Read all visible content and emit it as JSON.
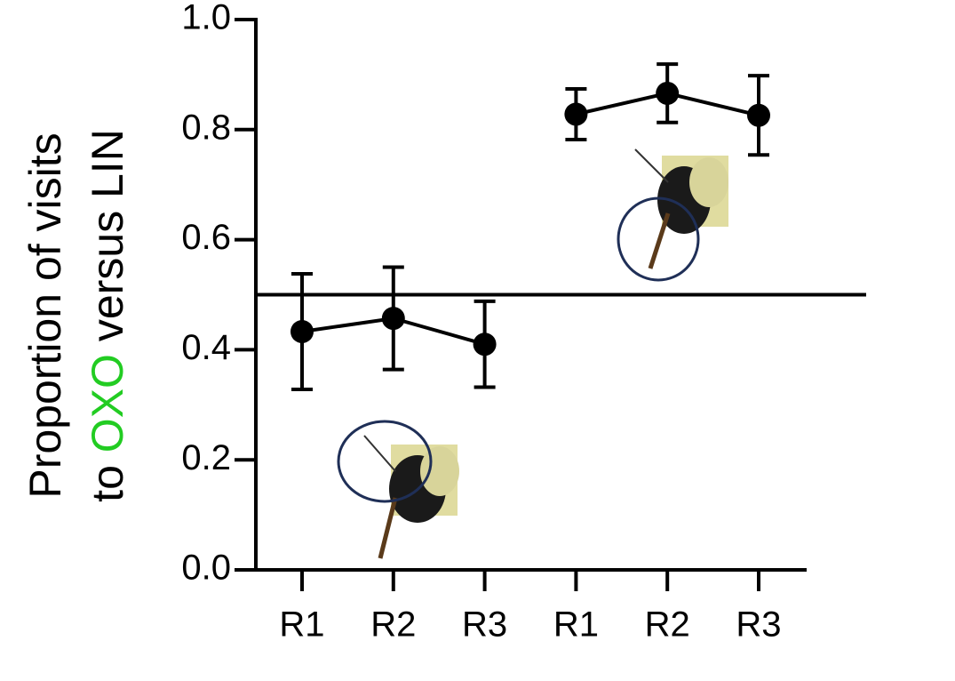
{
  "chart_data": {
    "type": "line",
    "ylabel": {
      "line1": "Proportion of visits",
      "line2": [
        "to",
        "OXO",
        "versus LIN"
      ]
    },
    "highlight_color": "#22cc22",
    "categories": [
      "R1",
      "R2",
      "R3",
      "R1",
      "R2",
      "R3"
    ],
    "series": [
      {
        "color": "#000000",
        "values": [
          0.433,
          0.457,
          0.41,
          null,
          null,
          null
        ],
        "errors": [
          0.105,
          0.093,
          0.078,
          null,
          null,
          null
        ]
      },
      {
        "color": "#000000",
        "values": [
          null,
          null,
          null,
          0.828,
          0.866,
          0.826
        ],
        "errors": [
          null,
          null,
          null,
          0.046,
          0.053,
          0.072
        ]
      }
    ],
    "reference_line": 0.5,
    "ylim": [
      0,
      1
    ],
    "yticks": [
      {
        "value": 0,
        "label": "0.0"
      },
      {
        "value": 0.2,
        "label": "0.2"
      },
      {
        "value": 0.4,
        "label": "0.4"
      },
      {
        "value": 0.6,
        "label": "0.6"
      },
      {
        "value": 0.8,
        "label": "0.8"
      },
      {
        "value": 1,
        "label": "1.0"
      }
    ]
  }
}
